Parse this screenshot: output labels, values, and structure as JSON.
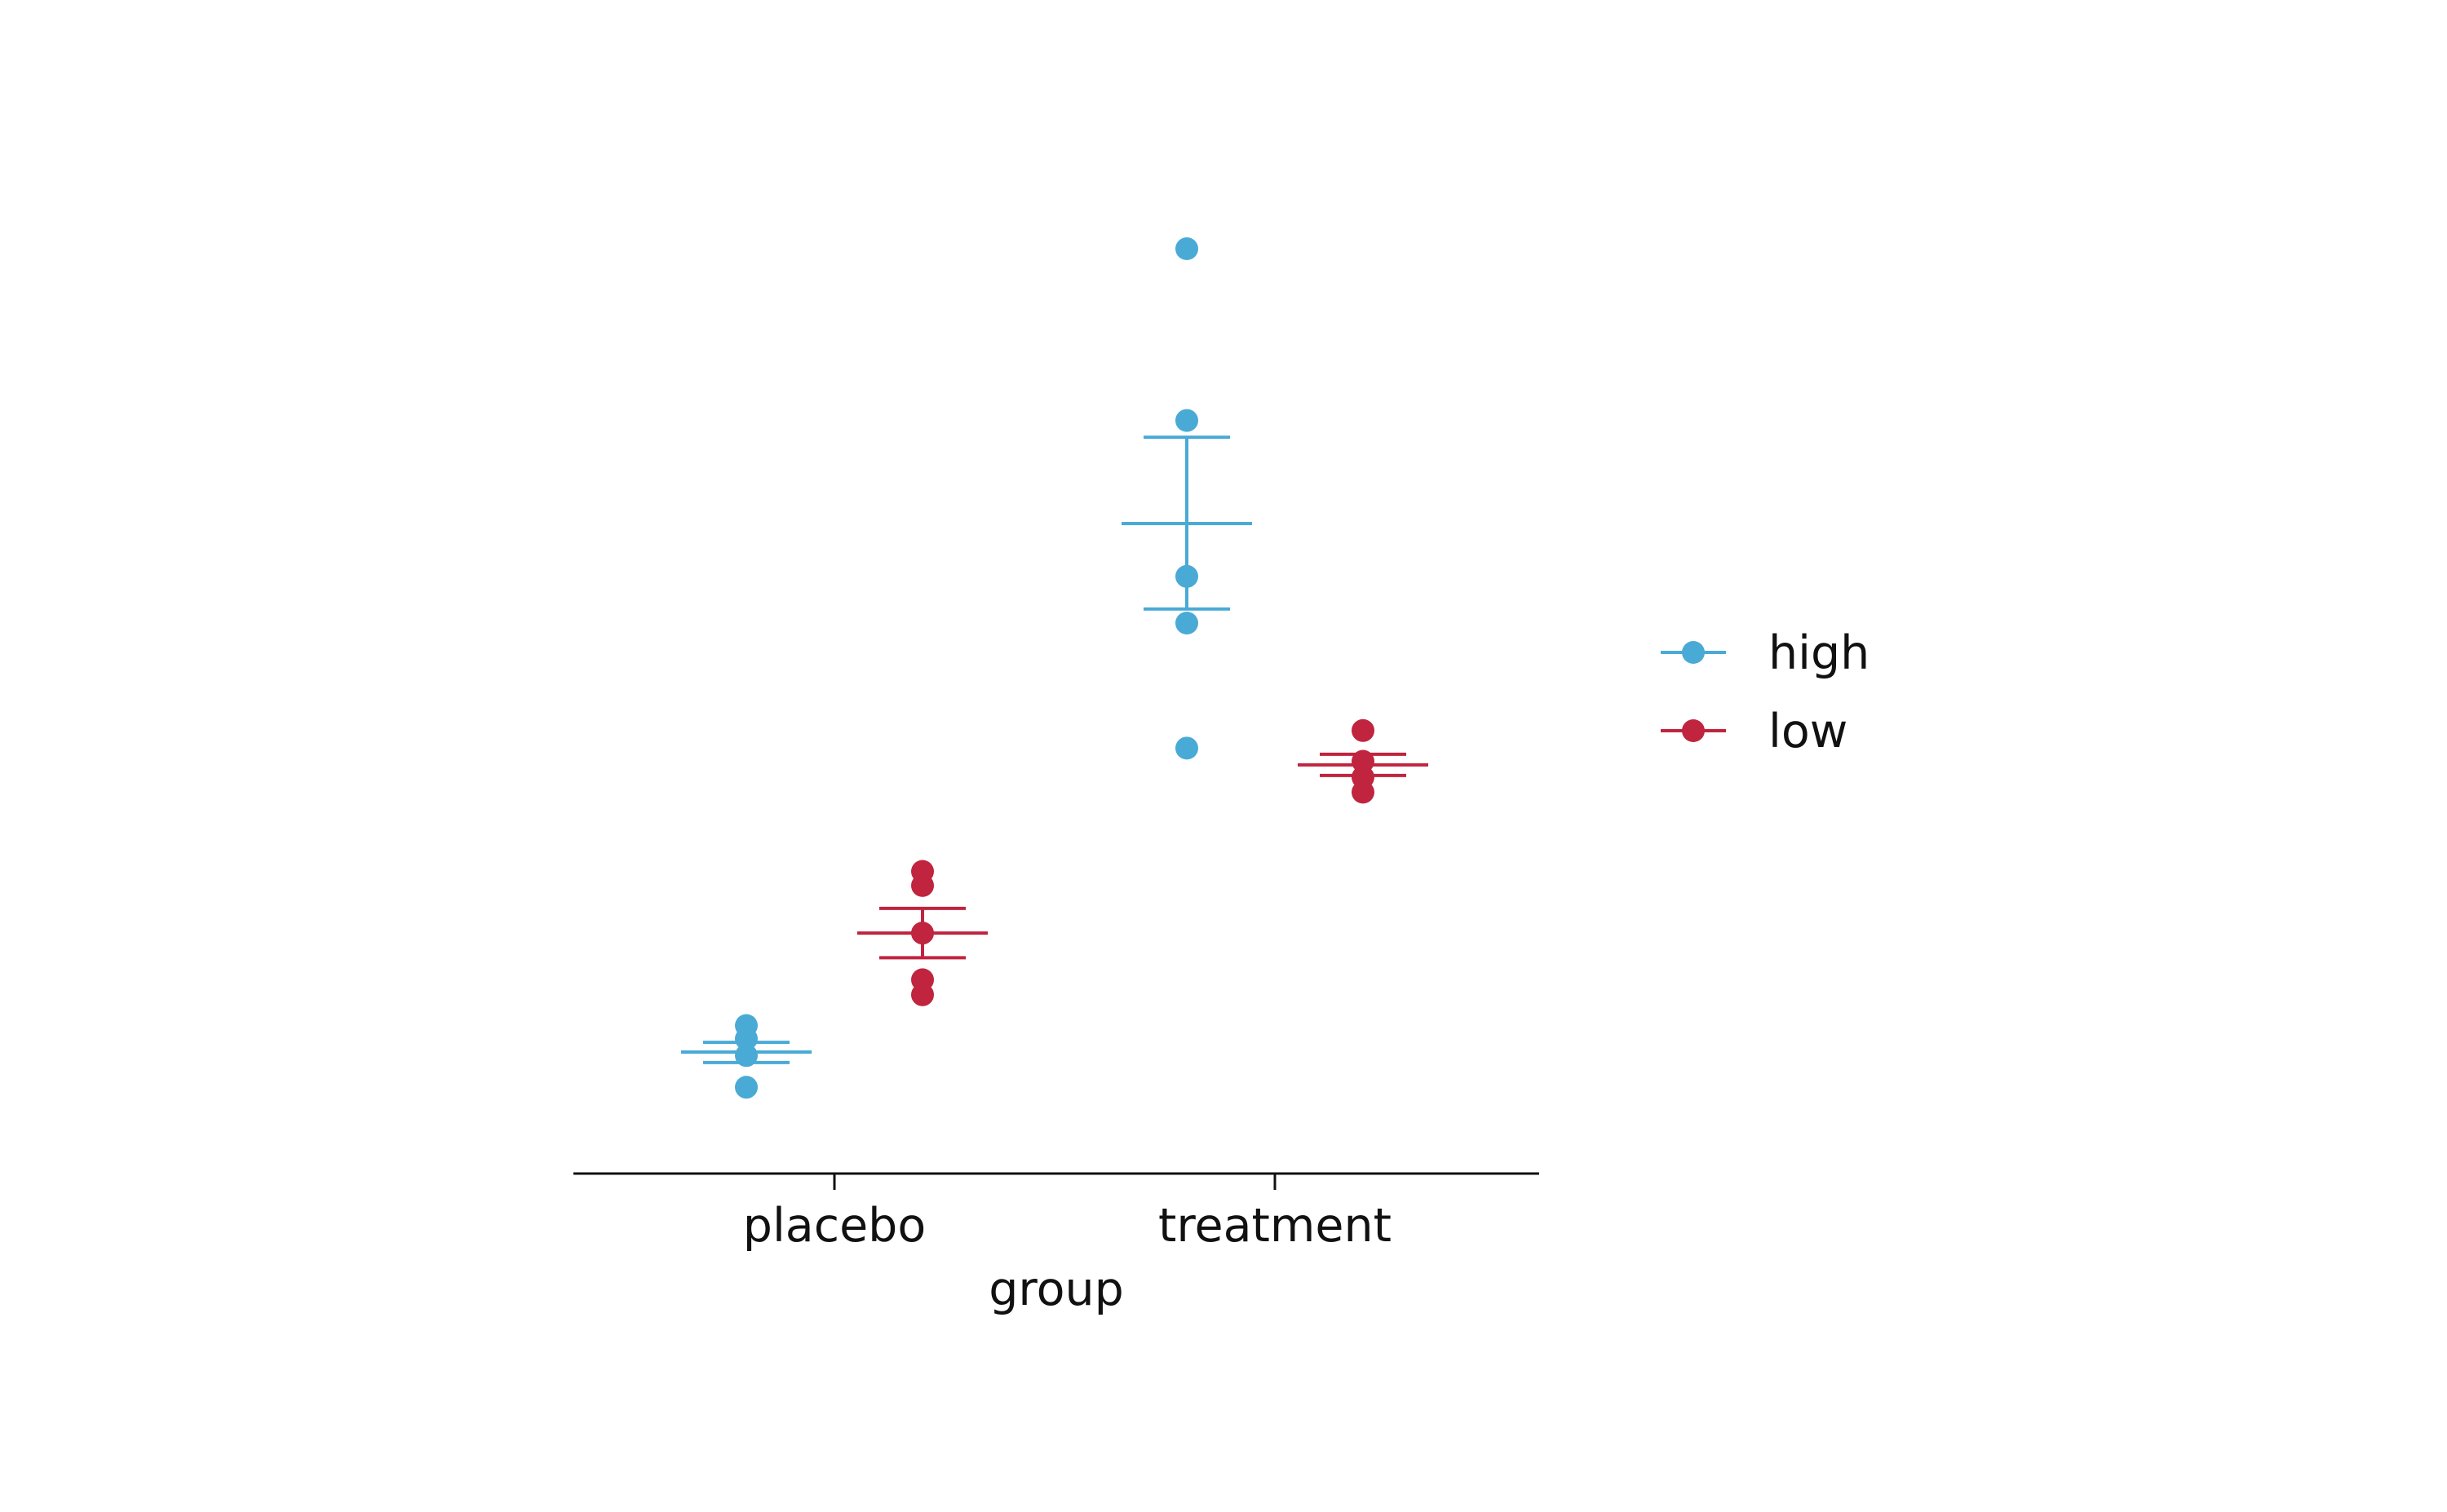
{
  "chart_data": {
    "type": "scatter",
    "xlabel": "group",
    "ylabel": "",
    "categories": [
      "placebo",
      "treatment"
    ],
    "ylim": [
      0,
      1
    ],
    "grid": false,
    "legend_position": "right",
    "series": [
      {
        "name": "high",
        "color": "#4aaad6",
        "points": [
          {
            "x": "placebo",
            "y": 0.118
          },
          {
            "x": "placebo",
            "y": 0.103
          },
          {
            "x": "placebo",
            "y": 0.084
          },
          {
            "x": "placebo",
            "y": 0.048
          },
          {
            "x": "treatment",
            "y": 1.0
          },
          {
            "x": "treatment",
            "y": 0.805
          },
          {
            "x": "treatment",
            "y": 0.628
          },
          {
            "x": "treatment",
            "y": 0.575
          },
          {
            "x": "treatment",
            "y": 0.433
          }
        ],
        "summary": [
          {
            "x": "placebo",
            "mean": 0.088,
            "lower": 0.076,
            "upper": 0.099
          },
          {
            "x": "treatment",
            "mean": 0.688,
            "lower": 0.591,
            "upper": 0.786
          }
        ]
      },
      {
        "name": "low",
        "color": "#c0243f",
        "points": [
          {
            "x": "placebo",
            "y": 0.293
          },
          {
            "x": "placebo",
            "y": 0.277
          },
          {
            "x": "placebo",
            "y": 0.223
          },
          {
            "x": "placebo",
            "y": 0.17
          },
          {
            "x": "placebo",
            "y": 0.153
          },
          {
            "x": "treatment",
            "y": 0.453
          },
          {
            "x": "treatment",
            "y": 0.418
          },
          {
            "x": "treatment",
            "y": 0.4
          },
          {
            "x": "treatment",
            "y": 0.383
          }
        ],
        "summary": [
          {
            "x": "placebo",
            "mean": 0.223,
            "lower": 0.195,
            "upper": 0.251
          },
          {
            "x": "treatment",
            "mean": 0.414,
            "lower": 0.402,
            "upper": 0.426
          }
        ]
      }
    ]
  }
}
